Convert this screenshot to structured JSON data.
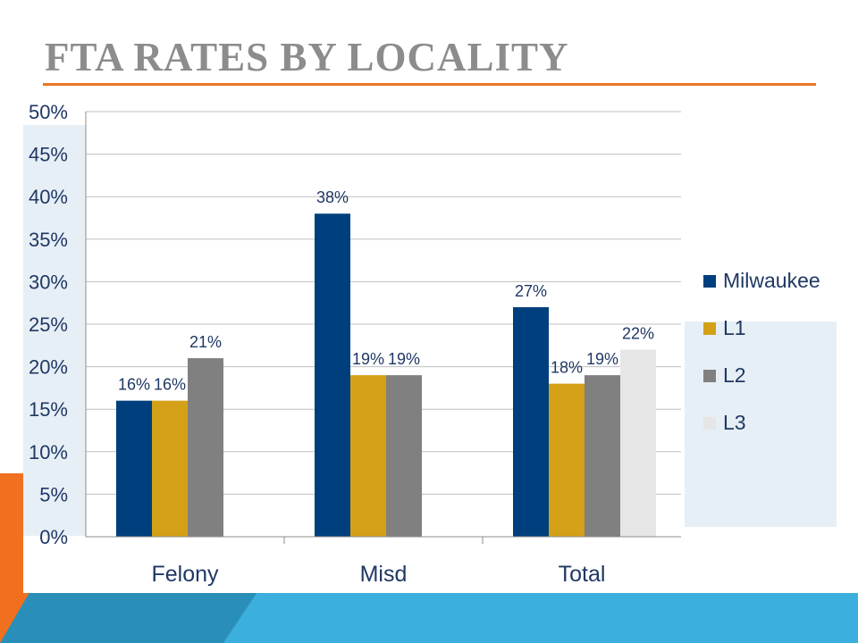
{
  "slide": {
    "title": "FTA RATES BY LOCALITY",
    "accent_colors": {
      "rule": "#e87722",
      "orange": "#f07020",
      "blue": "#3bb0de",
      "teal": "#2a8fb8"
    }
  },
  "chart_data": {
    "type": "bar",
    "title": "",
    "xlabel": "",
    "ylabel": "",
    "categories": [
      "Felony",
      "Misd",
      "Total"
    ],
    "series": [
      {
        "name": "Milwaukee",
        "color": "#003f7d",
        "values": [
          16,
          38,
          27
        ],
        "labels": [
          "16%",
          "38%",
          "27%"
        ]
      },
      {
        "name": "L1",
        "color": "#d4a017",
        "values": [
          16,
          19,
          18
        ],
        "labels": [
          "16%",
          "19%",
          "18%"
        ]
      },
      {
        "name": "L2",
        "color": "#808080",
        "values": [
          21,
          19,
          19
        ],
        "labels": [
          "21%",
          "19%",
          "19%"
        ]
      },
      {
        "name": "L3",
        "color": "#e6e6e6",
        "values": [
          null,
          null,
          22
        ],
        "labels": [
          "",
          "",
          "22%"
        ]
      }
    ],
    "ylim": [
      0,
      50
    ],
    "yticks": [
      "0%",
      "5%",
      "10%",
      "15%",
      "20%",
      "25%",
      "30%",
      "35%",
      "40%",
      "45%",
      "50%"
    ],
    "grid": true,
    "legend_position": "right"
  }
}
